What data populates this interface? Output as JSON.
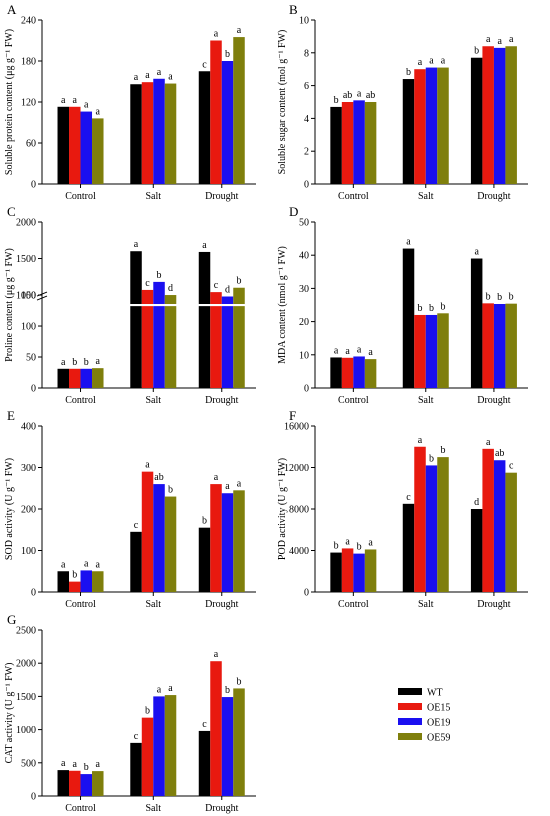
{
  "colors": {
    "WT": "#000000",
    "OE15": "#e8190f",
    "OE19": "#1a0ff0",
    "OE59": "#7f7f0c"
  },
  "legend": {
    "items": [
      "WT",
      "OE15",
      "OE19",
      "OE59"
    ]
  },
  "chart_data": [
    {
      "panel": "A",
      "type": "bar",
      "ylabel": "Soluble protein content (μg g⁻¹ FW)",
      "ylim": [
        0,
        240
      ],
      "yticks": [
        0,
        60,
        120,
        180,
        240
      ],
      "categories": [
        "Control",
        "Salt",
        "Drought"
      ],
      "series": [
        {
          "name": "WT",
          "values": [
            113,
            146,
            165
          ],
          "letters": [
            "a",
            "a",
            "c"
          ]
        },
        {
          "name": "OE15",
          "values": [
            113,
            149,
            210
          ],
          "letters": [
            "a",
            "a",
            "a"
          ]
        },
        {
          "name": "OE19",
          "values": [
            106,
            154,
            180
          ],
          "letters": [
            "a",
            "a",
            "b"
          ]
        },
        {
          "name": "OE59",
          "values": [
            96,
            147,
            215
          ],
          "letters": [
            "a",
            "a",
            "a"
          ]
        }
      ]
    },
    {
      "panel": "B",
      "type": "bar",
      "ylabel": "Soluble sugar content  (mol g⁻¹ FW)",
      "ylim": [
        0,
        10
      ],
      "yticks": [
        0,
        2,
        4,
        6,
        8,
        10
      ],
      "categories": [
        "Control",
        "Salt",
        "Drought"
      ],
      "series": [
        {
          "name": "WT",
          "values": [
            4.7,
            6.4,
            7.7
          ],
          "letters": [
            "b",
            "b",
            "b"
          ]
        },
        {
          "name": "OE15",
          "values": [
            5.0,
            7.0,
            8.4
          ],
          "letters": [
            "ab",
            "a",
            "a"
          ]
        },
        {
          "name": "OE19",
          "values": [
            5.1,
            7.1,
            8.3
          ],
          "letters": [
            "a",
            "a",
            "a"
          ]
        },
        {
          "name": "OE59",
          "values": [
            5.0,
            7.1,
            8.4
          ],
          "letters": [
            "ab",
            "a",
            "a"
          ]
        }
      ]
    },
    {
      "panel": "C",
      "type": "bar",
      "ylabel": "Proline content (μg g⁻¹ FW)",
      "ylim": [
        0,
        2000
      ],
      "yticks": [
        0,
        50,
        100,
        150,
        1000,
        1500,
        2000
      ],
      "axis_break": [
        150,
        1000
      ],
      "categories": [
        "Control",
        "Salt",
        "Drought"
      ],
      "series": [
        {
          "name": "WT",
          "values": [
            31,
            1600,
            1590
          ],
          "letters": [
            "a",
            "a",
            "a"
          ]
        },
        {
          "name": "OE15",
          "values": [
            31,
            1070,
            1040
          ],
          "letters": [
            "b",
            "c",
            "c"
          ]
        },
        {
          "name": "OE19",
          "values": [
            31,
            1180,
            980
          ],
          "letters": [
            "b",
            "b",
            "d"
          ]
        },
        {
          "name": "OE59",
          "values": [
            32,
            1000,
            1100
          ],
          "letters": [
            "a",
            "d",
            "b"
          ]
        }
      ]
    },
    {
      "panel": "D",
      "type": "bar",
      "ylabel": "MDA content (nmol g⁻¹ FW)",
      "ylim": [
        0,
        50
      ],
      "yticks": [
        0,
        10,
        20,
        30,
        40,
        50
      ],
      "categories": [
        "Control",
        "Salt",
        "Drought"
      ],
      "series": [
        {
          "name": "WT",
          "values": [
            9.2,
            42,
            39
          ],
          "letters": [
            "a",
            "a",
            "a"
          ]
        },
        {
          "name": "OE15",
          "values": [
            9.1,
            22,
            25.5
          ],
          "letters": [
            "a",
            "b",
            "b"
          ]
        },
        {
          "name": "OE19",
          "values": [
            9.5,
            22,
            25.3
          ],
          "letters": [
            "a",
            "b",
            "b"
          ]
        },
        {
          "name": "OE59",
          "values": [
            8.7,
            22.5,
            25.4
          ],
          "letters": [
            "a",
            "b",
            "b"
          ]
        }
      ]
    },
    {
      "panel": "E",
      "type": "bar",
      "ylabel": "SOD activity (U g⁻¹ FW)",
      "ylim": [
        0,
        400
      ],
      "yticks": [
        0,
        100,
        200,
        300,
        400
      ],
      "categories": [
        "Control",
        "Salt",
        "Drought"
      ],
      "series": [
        {
          "name": "WT",
          "values": [
            50,
            145,
            155
          ],
          "letters": [
            "a",
            "c",
            "b"
          ]
        },
        {
          "name": "OE15",
          "values": [
            25,
            290,
            260
          ],
          "letters": [
            "b",
            "a",
            "a"
          ]
        },
        {
          "name": "OE19",
          "values": [
            52,
            260,
            238
          ],
          "letters": [
            "a",
            "ab",
            "a"
          ]
        },
        {
          "name": "OE59",
          "values": [
            50,
            230,
            245
          ],
          "letters": [
            "a",
            "b",
            "a"
          ]
        }
      ]
    },
    {
      "panel": "F",
      "type": "bar",
      "ylabel": "POD activity (U g⁻¹ FW)",
      "ylim": [
        0,
        16000
      ],
      "yticks": [
        0,
        4000,
        8000,
        12000,
        16000
      ],
      "categories": [
        "Control",
        "Salt",
        "Drought"
      ],
      "series": [
        {
          "name": "WT",
          "values": [
            3800,
            8500,
            8000
          ],
          "letters": [
            "b",
            "c",
            "d"
          ]
        },
        {
          "name": "OE15",
          "values": [
            4200,
            14000,
            13800
          ],
          "letters": [
            "a",
            "a",
            "a"
          ]
        },
        {
          "name": "OE19",
          "values": [
            3700,
            12200,
            12700
          ],
          "letters": [
            "b",
            "b",
            "ab"
          ]
        },
        {
          "name": "OE59",
          "values": [
            4100,
            13000,
            11500
          ],
          "letters": [
            "a",
            "b",
            "c"
          ]
        }
      ]
    },
    {
      "panel": "G",
      "type": "bar",
      "ylabel": "CAT activity (U g⁻¹ FW)",
      "ylim": [
        0,
        2500
      ],
      "yticks": [
        0,
        500,
        1000,
        1500,
        2000,
        2500
      ],
      "categories": [
        "Control",
        "Salt",
        "Drought"
      ],
      "series": [
        {
          "name": "WT",
          "values": [
            390,
            800,
            980
          ],
          "letters": [
            "a",
            "c",
            "c"
          ]
        },
        {
          "name": "OE15",
          "values": [
            380,
            1180,
            2030
          ],
          "letters": [
            "a",
            "b",
            "a"
          ]
        },
        {
          "name": "OE19",
          "values": [
            330,
            1500,
            1490
          ],
          "letters": [
            "b",
            "a",
            "b"
          ]
        },
        {
          "name": "OE59",
          "values": [
            375,
            1520,
            1620
          ],
          "letters": [
            "a",
            "a",
            "b"
          ]
        }
      ]
    }
  ]
}
